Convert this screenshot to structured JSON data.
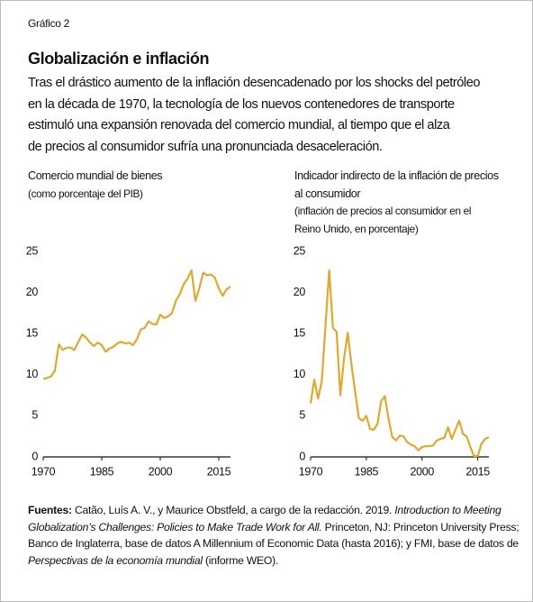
{
  "header": {
    "label": "Gráfico 2",
    "title": "Globalización e inflación",
    "description": [
      "Tras el drástico aumento de la inflación desencadenado por los shocks del petróleo",
      "en la década de 1970, la tecnología de los nuevos contenedores de transporte",
      "estimuló una expansión renovada del comercio mundial, al tiempo que el alza",
      "de precios al consumidor sufría una pronunciada desaceleración."
    ]
  },
  "chart_data": [
    {
      "type": "line",
      "title": "Comercio mundial de bienes",
      "subtitle": [
        "(como porcentaje del PIB)"
      ],
      "x": [
        1970,
        1971,
        1972,
        1973,
        1974,
        1975,
        1976,
        1977,
        1978,
        1979,
        1980,
        1981,
        1982,
        1983,
        1984,
        1985,
        1986,
        1987,
        1988,
        1989,
        1990,
        1991,
        1992,
        1993,
        1994,
        1995,
        1996,
        1997,
        1998,
        1999,
        2000,
        2001,
        2002,
        2003,
        2004,
        2005,
        2006,
        2007,
        2008,
        2009,
        2010,
        2011,
        2012,
        2013,
        2014,
        2015,
        2016,
        2017,
        2018
      ],
      "values": [
        9.5,
        9.6,
        9.8,
        10.5,
        13.7,
        13.0,
        13.3,
        13.3,
        13.0,
        14.0,
        14.9,
        14.5,
        13.9,
        13.5,
        13.9,
        13.6,
        12.8,
        13.2,
        13.4,
        13.8,
        14.0,
        13.8,
        13.9,
        13.6,
        14.3,
        15.5,
        15.7,
        16.5,
        16.2,
        16.1,
        17.3,
        16.9,
        17.1,
        17.5,
        19.0,
        19.8,
        21.0,
        21.7,
        22.7,
        19.0,
        20.5,
        22.4,
        22.1,
        22.2,
        21.8,
        20.5,
        19.6,
        20.4,
        20.7
      ],
      "color": "#e0a82e",
      "xlim": [
        1970,
        2018
      ],
      "xticks": [
        1970,
        1985,
        2000,
        2015
      ],
      "ylim": [
        0,
        25
      ],
      "yticks": [
        0,
        5,
        10,
        15,
        20,
        25
      ],
      "grid": false
    },
    {
      "type": "line",
      "title": "Indicador indirecto de la inflación de precios",
      "subtitle": [
        "al consumidor",
        "(inflación de precios al consumidor en el",
        "Reino Unido, en porcentaje)"
      ],
      "x": [
        1970,
        1971,
        1972,
        1973,
        1974,
        1975,
        1976,
        1977,
        1978,
        1979,
        1980,
        1981,
        1982,
        1983,
        1984,
        1985,
        1986,
        1987,
        1988,
        1989,
        1990,
        1991,
        1992,
        1993,
        1994,
        1995,
        1996,
        1997,
        1998,
        1999,
        2000,
        2001,
        2002,
        2003,
        2004,
        2005,
        2006,
        2007,
        2008,
        2009,
        2010,
        2011,
        2012,
        2013,
        2014,
        2015,
        2016,
        2017,
        2018
      ],
      "values": [
        6.5,
        9.4,
        7.1,
        9.2,
        15.9,
        22.7,
        15.7,
        15.2,
        7.5,
        12.0,
        15.1,
        11.2,
        7.9,
        4.7,
        4.4,
        5.0,
        3.4,
        3.3,
        4.0,
        6.8,
        7.4,
        4.6,
        2.4,
        2.0,
        2.6,
        2.5,
        1.8,
        1.5,
        1.3,
        0.8,
        1.2,
        1.3,
        1.3,
        1.4,
        2.0,
        2.2,
        2.3,
        3.6,
        2.2,
        3.3,
        4.4,
        2.8,
        2.5,
        1.2,
        0.1,
        0.1,
        1.6,
        2.2,
        2.4
      ],
      "color": "#e0a82e",
      "xlim": [
        1970,
        2018
      ],
      "xticks": [
        1970,
        1985,
        2000,
        2015
      ],
      "ylim": [
        0,
        25
      ],
      "yticks": [
        0,
        5,
        10,
        15,
        20,
        25
      ],
      "grid": false
    }
  ],
  "footer": {
    "label": "Fuentes:",
    "segments": [
      {
        "text": "Catão, Luís A. V., y Maurice Obstfeld, a cargo de la redacción. 2019.",
        "italic": false
      },
      {
        "text": "Introduction to Meeting Globalization’s Challenges: Policies to Make Trade Work for All.",
        "italic": true
      },
      {
        "text": "Princeton, NJ: Princeton University Press; Banco de Inglaterra, base de datos A Millennium of Economic Data (hasta 2016); y FMI, base de datos de",
        "italic": false
      },
      {
        "text": "Perspectivas de la economía mundial",
        "italic": true
      },
      {
        "text": "(informe WEO).",
        "italic": false
      }
    ]
  }
}
